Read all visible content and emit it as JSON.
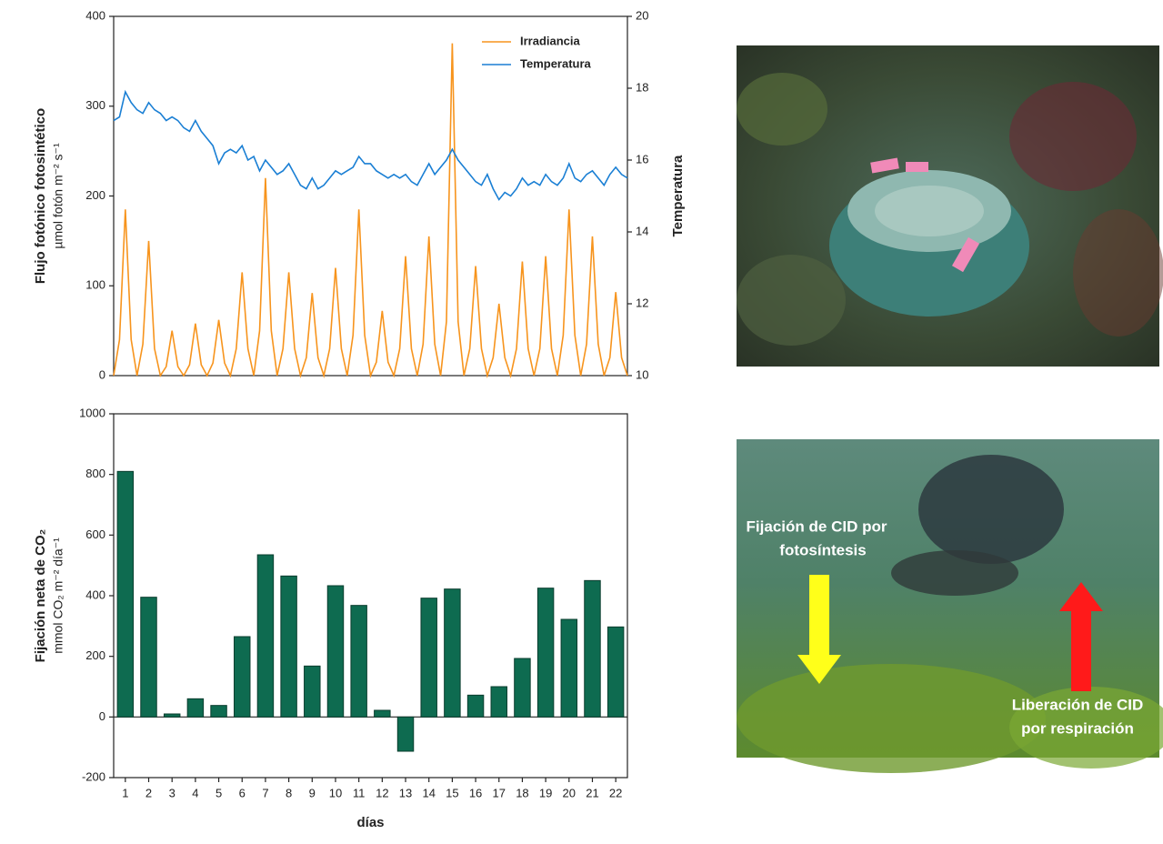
{
  "chart_data": [
    {
      "type": "line",
      "y_label": "Flujo fotónico fotosintético",
      "y_label_units": "µmol fotón m⁻² s⁻¹",
      "y2_label": "Temperatura",
      "legend": "upper right",
      "xlim": [
        0.5,
        22.5
      ],
      "ylim": [
        0,
        400
      ],
      "yticks": [
        0,
        100,
        200,
        300,
        400
      ],
      "y2lim": [
        10,
        20
      ],
      "y2ticks": [
        10,
        12,
        14,
        16,
        18,
        20
      ],
      "x": [
        0.5,
        0.75,
        1,
        1.25,
        1.5,
        1.75,
        2,
        2.25,
        2.5,
        2.75,
        3,
        3.25,
        3.5,
        3.75,
        4,
        4.25,
        4.5,
        4.75,
        5,
        5.25,
        5.5,
        5.75,
        6,
        6.25,
        6.5,
        6.75,
        7,
        7.25,
        7.5,
        7.75,
        8,
        8.25,
        8.5,
        8.75,
        9,
        9.25,
        9.5,
        9.75,
        10,
        10.25,
        10.5,
        10.75,
        11,
        11.25,
        11.5,
        11.75,
        12,
        12.25,
        12.5,
        12.75,
        13,
        13.25,
        13.5,
        13.75,
        14,
        14.25,
        14.5,
        14.75,
        15,
        15.25,
        15.5,
        15.75,
        16,
        16.25,
        16.5,
        16.75,
        17,
        17.25,
        17.5,
        17.75,
        18,
        18.25,
        18.5,
        18.75,
        19,
        19.25,
        19.5,
        19.75,
        20,
        20.25,
        20.5,
        20.75,
        21,
        21.25,
        21.5,
        21.75,
        22,
        22.25,
        22.5
      ],
      "series": [
        {
          "name": "Irradiancia",
          "color": "#f7941d",
          "values": [
            0,
            40,
            185,
            40,
            0,
            35,
            150,
            30,
            0,
            10,
            50,
            10,
            0,
            12,
            58,
            12,
            0,
            14,
            62,
            14,
            0,
            30,
            115,
            30,
            0,
            50,
            220,
            50,
            0,
            30,
            115,
            30,
            0,
            20,
            92,
            20,
            0,
            30,
            120,
            30,
            0,
            45,
            185,
            45,
            0,
            15,
            72,
            15,
            0,
            30,
            133,
            30,
            0,
            35,
            155,
            35,
            0,
            60,
            370,
            60,
            0,
            30,
            122,
            30,
            0,
            20,
            80,
            20,
            0,
            30,
            127,
            30,
            0,
            30,
            133,
            30,
            0,
            45,
            185,
            45,
            0,
            35,
            155,
            35,
            0,
            20,
            93,
            20,
            0
          ]
        },
        {
          "name": "Temperatura",
          "color": "#1a7fd4",
          "axis": "y2",
          "values": [
            17.1,
            17.2,
            17.9,
            17.6,
            17.4,
            17.3,
            17.6,
            17.4,
            17.3,
            17.1,
            17.2,
            17.1,
            16.9,
            16.8,
            17.1,
            16.8,
            16.6,
            16.4,
            15.9,
            16.2,
            16.3,
            16.2,
            16.4,
            16.0,
            16.1,
            15.7,
            16.0,
            15.8,
            15.6,
            15.7,
            15.9,
            15.6,
            15.3,
            15.2,
            15.5,
            15.2,
            15.3,
            15.5,
            15.7,
            15.6,
            15.7,
            15.8,
            16.1,
            15.9,
            15.9,
            15.7,
            15.6,
            15.5,
            15.6,
            15.5,
            15.6,
            15.4,
            15.3,
            15.6,
            15.9,
            15.6,
            15.8,
            16.0,
            16.3,
            16.0,
            15.8,
            15.6,
            15.4,
            15.3,
            15.6,
            15.2,
            14.9,
            15.1,
            15.0,
            15.2,
            15.5,
            15.3,
            15.4,
            15.3,
            15.6,
            15.4,
            15.3,
            15.5,
            15.9,
            15.5,
            15.4,
            15.6,
            15.7,
            15.5,
            15.3,
            15.6,
            15.8,
            15.6,
            15.5
          ]
        }
      ]
    },
    {
      "type": "bar",
      "y_label": "Fijación neta de CO₂",
      "y_label_units": "mmol CO₂ m⁻² día⁻¹",
      "x_label": "días",
      "color": "#0e6b50",
      "ylim": [
        -200,
        1000
      ],
      "yticks": [
        -200,
        0,
        200,
        400,
        600,
        800,
        1000
      ],
      "categories": [
        "1",
        "2",
        "3",
        "4",
        "5",
        "6",
        "7",
        "8",
        "9",
        "10",
        "11",
        "12",
        "13",
        "14",
        "15",
        "16",
        "17",
        "18",
        "19",
        "20",
        "21",
        "22"
      ],
      "values": [
        810,
        395,
        10,
        60,
        38,
        265,
        535,
        465,
        168,
        433,
        368,
        22,
        -113,
        392,
        422,
        72,
        100,
        193,
        425,
        322,
        450,
        297
      ]
    }
  ],
  "photo_labels": {
    "fixation": [
      "Fijación de CID por",
      "fotosíntesis"
    ],
    "release": [
      "Liberación de CID",
      "por respiración"
    ]
  }
}
